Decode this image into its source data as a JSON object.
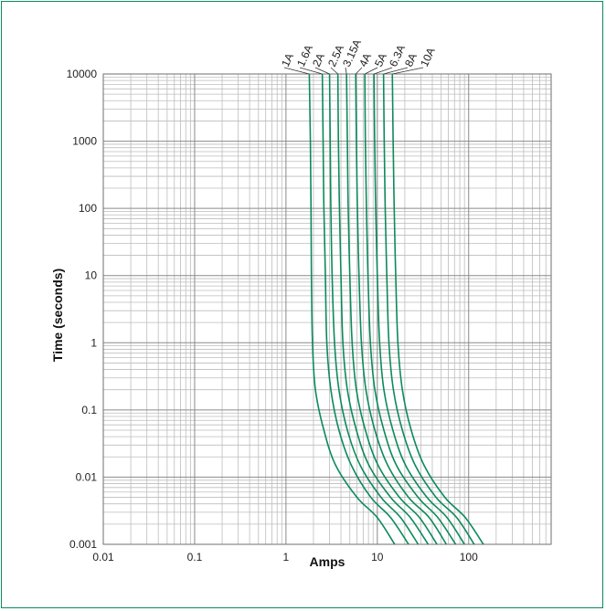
{
  "chart_data": {
    "type": "line",
    "title": "",
    "xlabel": "Amps",
    "ylabel": "Time (seconds)",
    "x_scale": "log",
    "y_scale": "log",
    "xlim": [
      0.01,
      800
    ],
    "ylim": [
      0.001,
      10000
    ],
    "grid": true,
    "x_tick_labels": [
      "0.01",
      "0.1",
      "1",
      "10",
      "100"
    ],
    "x_tick_values": [
      0.01,
      0.1,
      1,
      10,
      100
    ],
    "y_tick_labels": [
      "0.001",
      "0.01",
      "0.1",
      "1",
      "10",
      "100",
      "1000",
      "10000"
    ],
    "y_tick_values": [
      0.001,
      0.01,
      0.1,
      1,
      10,
      100,
      1000,
      10000
    ],
    "line_color": "#0c8a5c",
    "legend": "curve labels above plot, rotated",
    "series": [
      {
        "name": "1A",
        "points": [
          [
            1.8,
            10000
          ],
          [
            1.85,
            1000
          ],
          [
            1.88,
            100
          ],
          [
            1.9,
            10
          ],
          [
            1.95,
            1
          ],
          [
            2.1,
            0.2
          ],
          [
            2.6,
            0.05
          ],
          [
            3.5,
            0.015
          ],
          [
            6,
            0.005
          ],
          [
            10,
            0.0025
          ],
          [
            15.5,
            0.001
          ]
        ]
      },
      {
        "name": "1.6A",
        "points": [
          [
            2.5,
            10000
          ],
          [
            2.55,
            1000
          ],
          [
            2.6,
            100
          ],
          [
            2.7,
            10
          ],
          [
            2.8,
            1
          ],
          [
            3.1,
            0.2
          ],
          [
            3.8,
            0.05
          ],
          [
            5.2,
            0.015
          ],
          [
            8.5,
            0.005
          ],
          [
            14,
            0.0025
          ],
          [
            22,
            0.001
          ]
        ]
      },
      {
        "name": "2A",
        "points": [
          [
            3.0,
            10000
          ],
          [
            3.05,
            1000
          ],
          [
            3.1,
            100
          ],
          [
            3.2,
            10
          ],
          [
            3.4,
            1
          ],
          [
            3.8,
            0.2
          ],
          [
            4.7,
            0.05
          ],
          [
            6.5,
            0.015
          ],
          [
            11,
            0.005
          ],
          [
            18,
            0.0025
          ],
          [
            28,
            0.001
          ]
        ]
      },
      {
        "name": "2.5A",
        "points": [
          [
            3.7,
            10000
          ],
          [
            3.75,
            1000
          ],
          [
            3.85,
            100
          ],
          [
            4,
            10
          ],
          [
            4.2,
            1
          ],
          [
            4.7,
            0.2
          ],
          [
            5.9,
            0.05
          ],
          [
            8.1,
            0.015
          ],
          [
            14,
            0.005
          ],
          [
            23,
            0.0025
          ],
          [
            36,
            0.001
          ]
        ]
      },
      {
        "name": "3.15A",
        "points": [
          [
            4.6,
            10000
          ],
          [
            4.7,
            1000
          ],
          [
            4.8,
            100
          ],
          [
            5,
            10
          ],
          [
            5.3,
            1
          ],
          [
            5.9,
            0.2
          ],
          [
            7.4,
            0.05
          ],
          [
            10.2,
            0.015
          ],
          [
            17.5,
            0.005
          ],
          [
            29,
            0.0025
          ],
          [
            45,
            0.001
          ]
        ]
      },
      {
        "name": "4A",
        "points": [
          [
            5.8,
            10000
          ],
          [
            5.9,
            1000
          ],
          [
            6.05,
            100
          ],
          [
            6.3,
            10
          ],
          [
            6.7,
            1
          ],
          [
            7.5,
            0.2
          ],
          [
            9.4,
            0.05
          ],
          [
            13,
            0.015
          ],
          [
            22,
            0.005
          ],
          [
            37,
            0.0025
          ],
          [
            57,
            0.001
          ]
        ]
      },
      {
        "name": "5A",
        "points": [
          [
            7.3,
            10000
          ],
          [
            7.4,
            1000
          ],
          [
            7.6,
            100
          ],
          [
            7.9,
            10
          ],
          [
            8.4,
            1
          ],
          [
            9.4,
            0.2
          ],
          [
            11.8,
            0.05
          ],
          [
            16.2,
            0.015
          ],
          [
            28,
            0.005
          ],
          [
            46,
            0.0025
          ],
          [
            72,
            0.001
          ]
        ]
      },
      {
        "name": "6.3A",
        "points": [
          [
            9.2,
            10000
          ],
          [
            9.35,
            1000
          ],
          [
            9.6,
            100
          ],
          [
            10,
            10
          ],
          [
            10.6,
            1
          ],
          [
            11.8,
            0.2
          ],
          [
            14.8,
            0.05
          ],
          [
            20.4,
            0.015
          ],
          [
            35,
            0.005
          ],
          [
            58,
            0.0025
          ],
          [
            90,
            0.001
          ]
        ]
      },
      {
        "name": "8A",
        "points": [
          [
            11.7,
            10000
          ],
          [
            11.9,
            1000
          ],
          [
            12.2,
            100
          ],
          [
            12.7,
            10
          ],
          [
            13.4,
            1
          ],
          [
            15,
            0.2
          ],
          [
            18.8,
            0.05
          ],
          [
            26,
            0.015
          ],
          [
            44,
            0.005
          ],
          [
            74,
            0.0025
          ],
          [
            115,
            0.001
          ]
        ]
      },
      {
        "name": "10A",
        "points": [
          [
            14.6,
            10000
          ],
          [
            14.9,
            1000
          ],
          [
            15.3,
            100
          ],
          [
            15.9,
            10
          ],
          [
            16.8,
            1
          ],
          [
            18.8,
            0.2
          ],
          [
            23.5,
            0.05
          ],
          [
            32.5,
            0.015
          ],
          [
            55,
            0.005
          ],
          [
            92,
            0.0025
          ],
          [
            145,
            0.001
          ]
        ]
      }
    ]
  }
}
